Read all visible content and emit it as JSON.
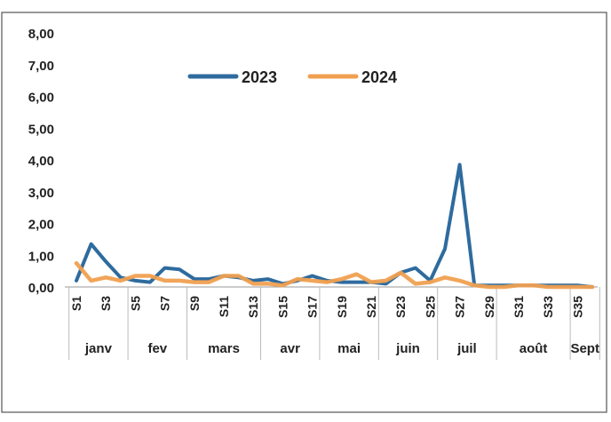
{
  "chart_data": {
    "type": "line",
    "ylim": [
      0,
      8
    ],
    "yticks": [
      "0,00",
      "1,00",
      "2,00",
      "3,00",
      "4,00",
      "5,00",
      "6,00",
      "7,00",
      "8,00"
    ],
    "x": [
      "S1",
      "S2",
      "S3",
      "S4",
      "S5",
      "S6",
      "S7",
      "S8",
      "S9",
      "S10",
      "S11",
      "S12",
      "S13",
      "S14",
      "S15",
      "S16",
      "S17",
      "S18",
      "S19",
      "S20",
      "S21",
      "S22",
      "S23",
      "S24",
      "S25",
      "S26",
      "S27",
      "S28",
      "S29",
      "S30",
      "S31",
      "S32",
      "S33",
      "S34",
      "S35",
      "S36"
    ],
    "xtick_labels": [
      "S1",
      "S3",
      "S5",
      "S7",
      "S9",
      "S11",
      "S13",
      "S15",
      "S17",
      "S19",
      "S21",
      "S23",
      "S25",
      "S27",
      "S29",
      "S31",
      "S33",
      "S35"
    ],
    "month_labels": [
      {
        "label": "janv",
        "start": 1,
        "end": 4
      },
      {
        "label": "fev",
        "start": 5,
        "end": 8
      },
      {
        "label": "mars",
        "start": 9,
        "end": 13
      },
      {
        "label": "avr",
        "start": 14,
        "end": 17
      },
      {
        "label": "mai",
        "start": 18,
        "end": 21
      },
      {
        "label": "juin",
        "start": 22,
        "end": 25
      },
      {
        "label": "juil",
        "start": 26,
        "end": 29
      },
      {
        "label": "août",
        "start": 30,
        "end": 34
      },
      {
        "label": "Sept",
        "start": 35,
        "end": 36
      }
    ],
    "series": [
      {
        "name": "2023",
        "color": "#2e6b9e",
        "values": [
          0.2,
          1.35,
          0.8,
          0.3,
          0.2,
          0.15,
          0.6,
          0.55,
          0.25,
          0.25,
          0.35,
          0.3,
          0.2,
          0.25,
          0.1,
          0.2,
          0.35,
          0.2,
          0.15,
          0.15,
          0.15,
          0.1,
          0.45,
          0.6,
          0.2,
          1.2,
          3.85,
          0.05,
          0.05,
          0.05,
          0.05,
          0.05,
          0.05,
          0.05,
          0.05,
          0.0
        ]
      },
      {
        "name": "2024",
        "color": "#f0a050",
        "values": [
          0.75,
          0.2,
          0.3,
          0.2,
          0.35,
          0.35,
          0.2,
          0.2,
          0.15,
          0.15,
          0.35,
          0.35,
          0.1,
          0.1,
          0.05,
          0.25,
          0.2,
          0.15,
          0.25,
          0.4,
          0.15,
          0.2,
          0.45,
          0.1,
          0.15,
          0.3,
          0.2,
          0.05,
          0.0,
          0.0,
          0.05,
          0.05,
          0.0,
          0.0,
          0.0,
          0.0
        ]
      }
    ],
    "legend": "top-center",
    "grid": false
  }
}
